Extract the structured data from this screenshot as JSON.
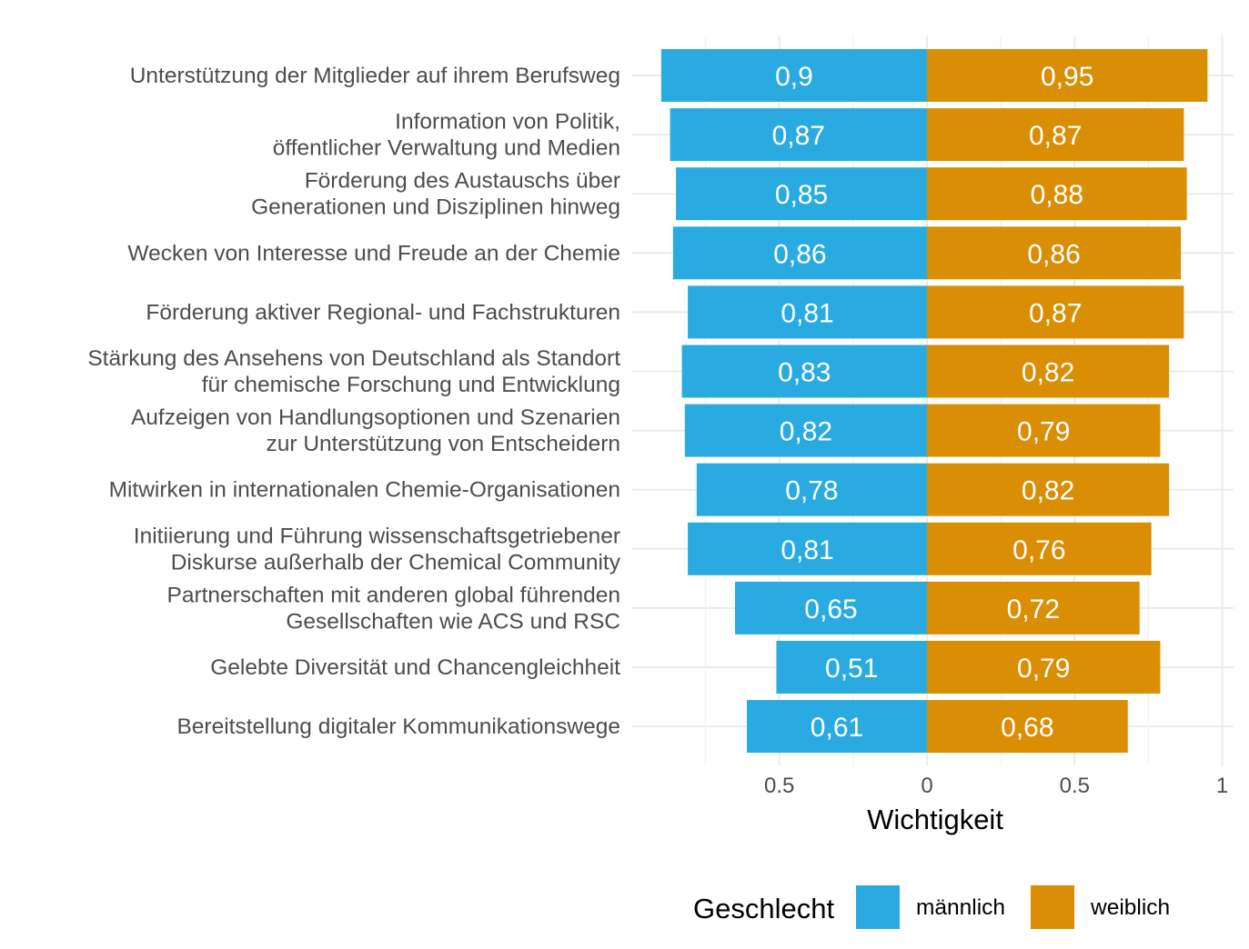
{
  "chart_data": {
    "type": "bar",
    "orientation": "horizontal-diverging",
    "categories": [
      "Unterstützung der Mitglieder auf ihrem Berufsweg",
      "Information von Politik,\nöffentlicher Verwaltung und Medien",
      "Förderung des Austauschs über\nGenerationen und Disziplinen hinweg",
      "Wecken von Interesse und Freude an der Chemie",
      "Förderung aktiver Regional- und Fachstrukturen",
      "Stärkung des Ansehens von Deutschland als Standort\nfür chemische Forschung und Entwicklung",
      "Aufzeigen von Handlungsoptionen und Szenarien\nzur Unterstützung von Entscheidern",
      "Mitwirken in internationalen Chemie-Organisationen",
      "Initiierung und Führung wissenschaftsgetriebener\nDiskurse außerhalb der Chemical Community",
      "Partnerschaften mit anderen global führenden\nGesellschaften wie ACS und RSC",
      "Gelebte Diversität und Chancengleichheit",
      "Bereitstellung digitaler Kommunikationswege"
    ],
    "series": [
      {
        "name": "männlich",
        "color": "#29abe2",
        "side": "left",
        "values": [
          0.9,
          0.87,
          0.85,
          0.86,
          0.81,
          0.83,
          0.82,
          0.78,
          0.81,
          0.65,
          0.51,
          0.61
        ],
        "labels": [
          "0,9",
          "0,87",
          "0,85",
          "0,86",
          "0,81",
          "0,83",
          "0,82",
          "0,78",
          "0,81",
          "0,65",
          "0,51",
          "0,61"
        ]
      },
      {
        "name": "weiblich",
        "color": "#d98e04",
        "side": "right",
        "values": [
          0.95,
          0.87,
          0.88,
          0.86,
          0.87,
          0.82,
          0.79,
          0.82,
          0.76,
          0.72,
          0.79,
          0.68
        ],
        "labels": [
          "0,95",
          "0,87",
          "0,88",
          "0,86",
          "0,87",
          "0,82",
          "0,79",
          "0,82",
          "0,76",
          "0,72",
          "0,79",
          "0,68"
        ]
      }
    ],
    "xlabel": "Wichtigkeit",
    "ylabel": "",
    "xlim": [
      -1,
      1
    ],
    "xticks": [
      -0.5,
      0,
      0.5,
      1
    ],
    "xtick_labels": [
      "0.5",
      "0",
      "0.5",
      "1"
    ],
    "grid": true,
    "legend": {
      "title": "Geschlecht",
      "position": "bottom",
      "entries": [
        "männlich",
        "weiblich"
      ]
    }
  }
}
